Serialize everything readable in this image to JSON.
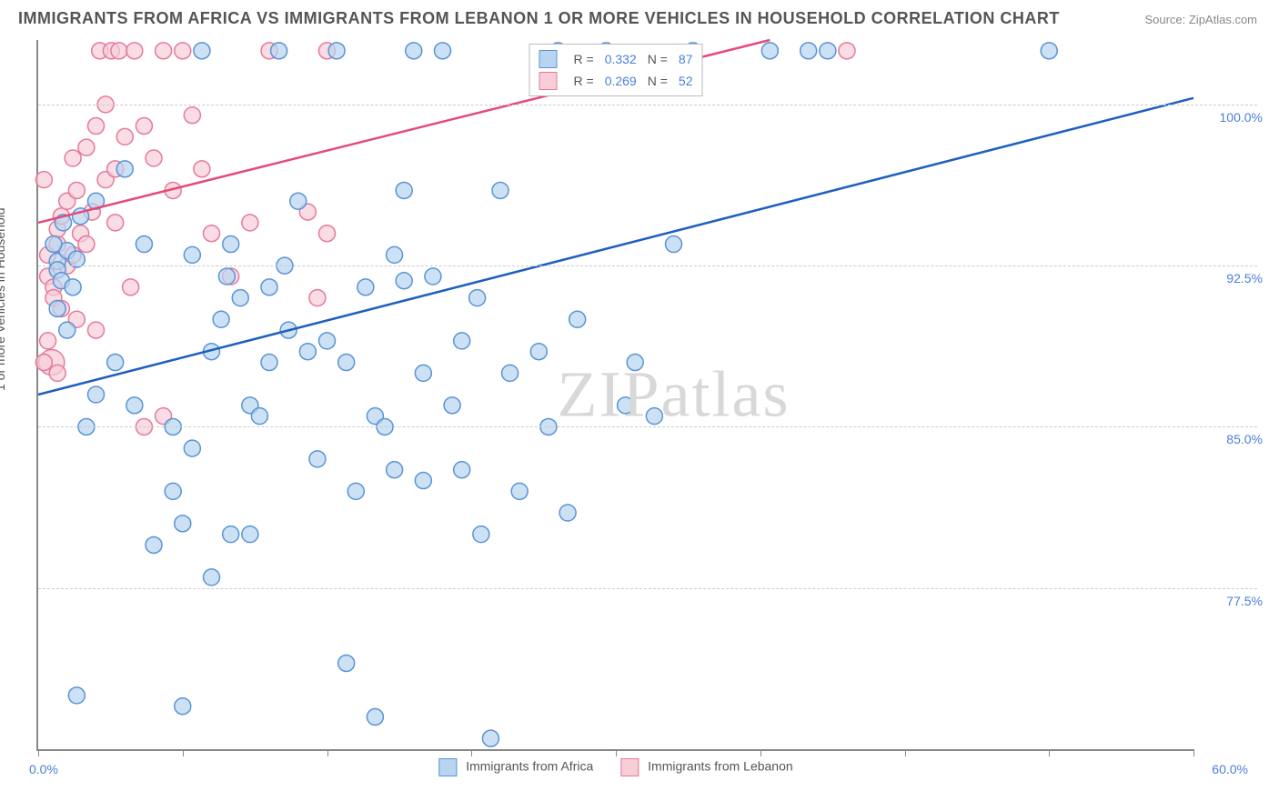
{
  "title": "IMMIGRANTS FROM AFRICA VS IMMIGRANTS FROM LEBANON 1 OR MORE VEHICLES IN HOUSEHOLD CORRELATION CHART",
  "source": "Source: ZipAtlas.com",
  "watermark": "ZIPatlas",
  "chart": {
    "type": "scatter",
    "y_axis_label": "1 or more Vehicles in Household",
    "xlim": [
      0.0,
      60.0
    ],
    "ylim": [
      70.0,
      103.0
    ],
    "x_min_label": "0.0%",
    "x_max_label": "60.0%",
    "y_ticks": [
      77.5,
      85.0,
      92.5,
      100.0
    ],
    "y_tick_labels": [
      "77.5%",
      "85.0%",
      "92.5%",
      "100.0%"
    ],
    "x_tick_positions": [
      0,
      7.5,
      15,
      22.5,
      30,
      37.5,
      45,
      52.5,
      60
    ],
    "grid_color": "#cccccc",
    "axis_color": "#888888",
    "tick_label_color": "#4a7fd8",
    "background_color": "#ffffff"
  },
  "legend_top": {
    "rows": [
      {
        "r_label": "R =",
        "r_value": "0.332",
        "n_label": "N =",
        "n_value": "87"
      },
      {
        "r_label": "R =",
        "r_value": "0.269",
        "n_label": "N =",
        "n_value": "52"
      }
    ]
  },
  "series": [
    {
      "name": "Immigrants from Africa",
      "legend_label": "Immigrants from Africa",
      "marker_fill": "#b8d4f0",
      "marker_stroke": "#5a94d6",
      "marker_radius": 9,
      "line_color": "#1f5fbf",
      "line_width": 2.5,
      "trend": {
        "x1": 0,
        "y1": 86.5,
        "x2": 60,
        "y2": 100.3
      },
      "points": [
        [
          1,
          92.7
        ],
        [
          1,
          92.3
        ],
        [
          1.2,
          91.8
        ],
        [
          1.5,
          93.2
        ],
        [
          0.8,
          93.5
        ],
        [
          1.8,
          91.5
        ],
        [
          1,
          90.5
        ],
        [
          1.5,
          89.5
        ],
        [
          2,
          92.8
        ],
        [
          3,
          86.5
        ],
        [
          2,
          72.5
        ],
        [
          2.5,
          85
        ],
        [
          4,
          88
        ],
        [
          4.5,
          97
        ],
        [
          5,
          86
        ],
        [
          5.5,
          93.5
        ],
        [
          6,
          79.5
        ],
        [
          7,
          85
        ],
        [
          7,
          82
        ],
        [
          7.5,
          80.5
        ],
        [
          7.5,
          72
        ],
        [
          8,
          84
        ],
        [
          8,
          93
        ],
        [
          8.5,
          102.5
        ],
        [
          9,
          78
        ],
        [
          9.5,
          90
        ],
        [
          9.8,
          92
        ],
        [
          10,
          80
        ],
        [
          10,
          93.5
        ],
        [
          10.5,
          91
        ],
        [
          11,
          80
        ],
        [
          11,
          86
        ],
        [
          11.5,
          85.5
        ],
        [
          12,
          88
        ],
        [
          12,
          91.5
        ],
        [
          12.5,
          102.5
        ],
        [
          12.8,
          92.5
        ],
        [
          13,
          89.5
        ],
        [
          13.5,
          95.5
        ],
        [
          14,
          88.5
        ],
        [
          14.5,
          83.5
        ],
        [
          15,
          89
        ],
        [
          15.5,
          102.5
        ],
        [
          16,
          88
        ],
        [
          16,
          74
        ],
        [
          16.5,
          82
        ],
        [
          17,
          91.5
        ],
        [
          17.5,
          85.5
        ],
        [
          17.5,
          71.5
        ],
        [
          18,
          85
        ],
        [
          18.5,
          83
        ],
        [
          19,
          96
        ],
        [
          19.5,
          102.5
        ],
        [
          19,
          91.8
        ],
        [
          20,
          82.5
        ],
        [
          20,
          87.5
        ],
        [
          20.5,
          92
        ],
        [
          21,
          102.5
        ],
        [
          21.5,
          86
        ],
        [
          22,
          89
        ],
        [
          22,
          83
        ],
        [
          22.8,
          91
        ],
        [
          23,
          80
        ],
        [
          23.5,
          70.5
        ],
        [
          24,
          96
        ],
        [
          24.5,
          87.5
        ],
        [
          25,
          82
        ],
        [
          26,
          88.5
        ],
        [
          26.5,
          85
        ],
        [
          27,
          102.5
        ],
        [
          27.5,
          81
        ],
        [
          28,
          90
        ],
        [
          29.5,
          102.5
        ],
        [
          30.5,
          86
        ],
        [
          31,
          88
        ],
        [
          32,
          85.5
        ],
        [
          33,
          93.5
        ],
        [
          34,
          102.5
        ],
        [
          38,
          102.5
        ],
        [
          40,
          102.5
        ],
        [
          41,
          102.5
        ],
        [
          52.5,
          102.5
        ],
        [
          1.3,
          94.5
        ],
        [
          2.2,
          94.8
        ],
        [
          3,
          95.5
        ],
        [
          18.5,
          93
        ],
        [
          9,
          88.5
        ]
      ]
    },
    {
      "name": "Immigrants from Lebanon",
      "legend_label": "Immigrants from Lebanon",
      "marker_fill": "#f7cdd8",
      "marker_stroke": "#e67a9a",
      "marker_radius": 9,
      "line_color": "#e64a78",
      "line_width": 2.5,
      "trend": {
        "x1": 0,
        "y1": 94.5,
        "x2": 38,
        "y2": 103.0
      },
      "points": [
        [
          0.5,
          93
        ],
        [
          0.5,
          92
        ],
        [
          0.8,
          91.5
        ],
        [
          0.8,
          91
        ],
        [
          1,
          93.5
        ],
        [
          1,
          94.2
        ],
        [
          1.2,
          94.8
        ],
        [
          1.2,
          90.5
        ],
        [
          1.5,
          95.5
        ],
        [
          1.5,
          92.5
        ],
        [
          1.8,
          93
        ],
        [
          1.8,
          97.5
        ],
        [
          2,
          96
        ],
        [
          2,
          90
        ],
        [
          2.2,
          94
        ],
        [
          2.5,
          98
        ],
        [
          2.5,
          93.5
        ],
        [
          2.8,
          95
        ],
        [
          3,
          89.5
        ],
        [
          3,
          99
        ],
        [
          3.2,
          102.5
        ],
        [
          3.5,
          96.5
        ],
        [
          3.5,
          100
        ],
        [
          3.8,
          102.5
        ],
        [
          4,
          94.5
        ],
        [
          4,
          97
        ],
        [
          4.2,
          102.5
        ],
        [
          4.5,
          98.5
        ],
        [
          4.8,
          91.5
        ],
        [
          5,
          102.5
        ],
        [
          5.5,
          99
        ],
        [
          5.5,
          85
        ],
        [
          6,
          97.5
        ],
        [
          6.5,
          102.5
        ],
        [
          7,
          96
        ],
        [
          7.5,
          102.5
        ],
        [
          8,
          99.5
        ],
        [
          8.5,
          97
        ],
        [
          9,
          94
        ],
        [
          10,
          92
        ],
        [
          11,
          94.5
        ],
        [
          12,
          102.5
        ],
        [
          14,
          95
        ],
        [
          14.5,
          91
        ],
        [
          15,
          94
        ],
        [
          15,
          102.5
        ],
        [
          42,
          102.5
        ],
        [
          0.3,
          96.5
        ],
        [
          0.3,
          88
        ],
        [
          0.5,
          89
        ],
        [
          1,
          87.5
        ],
        [
          6.5,
          85.5
        ]
      ],
      "large_points": [
        [
          0.7,
          88,
          14
        ]
      ]
    }
  ],
  "legend_bottom": {
    "items": [
      {
        "label": "Immigrants from Africa",
        "fill": "#b8d4f0",
        "stroke": "#5a94d6"
      },
      {
        "label": "Immigrants from Lebanon",
        "fill": "#f7cdd8",
        "stroke": "#e67a9a"
      }
    ]
  }
}
